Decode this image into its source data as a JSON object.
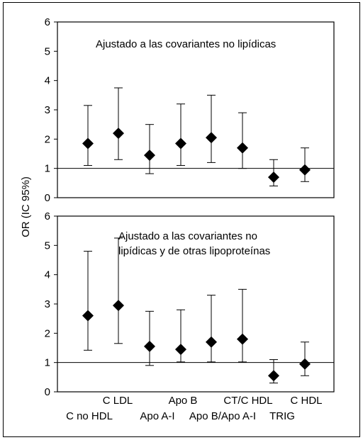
{
  "ylabel": "OR (IC 95%)",
  "chart_data": [
    {
      "type": "scatter",
      "subtype": "forest-plot",
      "annotation": "Ajustado a las covariantes no lipídicas",
      "categories": [
        "C no HDL",
        "C LDL",
        "Apo A-I",
        "Apo B",
        "Apo B/Apo A-I",
        "CT/C HDL",
        "TRIG",
        "C HDL"
      ],
      "values": [
        1.85,
        2.2,
        1.45,
        1.85,
        2.05,
        1.7,
        0.7,
        0.95
      ],
      "lower": [
        1.1,
        1.3,
        0.82,
        1.1,
        1.2,
        1.0,
        0.4,
        0.55
      ],
      "upper": [
        3.15,
        3.75,
        2.5,
        3.2,
        3.5,
        2.9,
        1.3,
        1.7
      ],
      "ylim": [
        0,
        6
      ],
      "yticks": [
        "0",
        "1",
        "2",
        "3",
        "4",
        "5",
        "6"
      ],
      "reference_line": 1,
      "grid": false
    },
    {
      "type": "scatter",
      "subtype": "forest-plot",
      "annotation_lines": [
        "Ajustado a las covariantes no",
        "lipídicas y de otras lipoproteínas"
      ],
      "categories": [
        "C no HDL",
        "C LDL",
        "Apo A-I",
        "Apo B",
        "Apo B/Apo A-I",
        "CT/C HDL",
        "TRIG",
        "C HDL"
      ],
      "values": [
        2.6,
        2.95,
        1.55,
        1.45,
        1.7,
        1.8,
        0.55,
        0.95
      ],
      "lower": [
        1.42,
        1.65,
        0.9,
        1.02,
        1.02,
        1.02,
        0.3,
        0.55
      ],
      "upper": [
        4.8,
        5.25,
        2.75,
        2.8,
        3.3,
        3.5,
        1.1,
        1.7
      ],
      "ylim": [
        0,
        6
      ],
      "yticks": [
        "0",
        "1",
        "2",
        "3",
        "4",
        "5",
        "6"
      ],
      "reference_line": 1,
      "grid": false
    }
  ]
}
